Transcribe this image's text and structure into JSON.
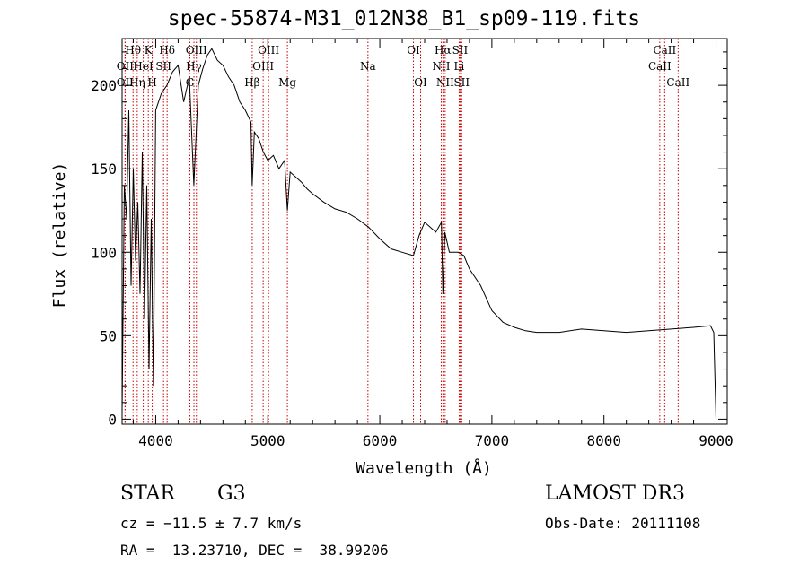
{
  "chart_data": {
    "type": "line",
    "title": "spec-55874-M31_012N38_B1_sp09-119.fits",
    "xlabel": "Wavelength (Å)",
    "ylabel": "Flux (relative)",
    "xlim": [
      3700,
      9100
    ],
    "ylim": [
      -3,
      228
    ],
    "xticks": [
      4000,
      5000,
      6000,
      7000,
      8000,
      9000
    ],
    "yticks": [
      0,
      50,
      100,
      150,
      200
    ],
    "series": [
      {
        "name": "flux",
        "x": [
          3700,
          3720,
          3740,
          3760,
          3780,
          3800,
          3820,
          3840,
          3860,
          3880,
          3900,
          3920,
          3940,
          3960,
          3980,
          4000,
          4050,
          4100,
          4150,
          4200,
          4250,
          4300,
          4340,
          4380,
          4420,
          4460,
          4500,
          4550,
          4600,
          4650,
          4700,
          4750,
          4800,
          4850,
          4861,
          4880,
          4920,
          4960,
          5000,
          5050,
          5100,
          5150,
          5175,
          5200,
          5250,
          5300,
          5350,
          5400,
          5500,
          5600,
          5700,
          5800,
          5900,
          6000,
          6100,
          6200,
          6300,
          6350,
          6400,
          6500,
          6550,
          6563,
          6580,
          6620,
          6700,
          6750,
          6800,
          6900,
          7000,
          7100,
          7200,
          7300,
          7400,
          7600,
          7800,
          8000,
          8200,
          8400,
          8600,
          8800,
          8950,
          8980,
          9000
        ],
        "values": [
          3,
          140,
          120,
          185,
          80,
          150,
          95,
          130,
          75,
          160,
          60,
          140,
          30,
          120,
          20,
          185,
          195,
          200,
          208,
          212,
          190,
          205,
          140,
          200,
          210,
          218,
          222,
          215,
          212,
          205,
          200,
          190,
          185,
          178,
          140,
          172,
          168,
          160,
          155,
          158,
          150,
          155,
          125,
          148,
          145,
          142,
          138,
          135,
          130,
          126,
          124,
          120,
          115,
          108,
          102,
          100,
          98,
          110,
          118,
          112,
          118,
          75,
          112,
          100,
          100,
          98,
          90,
          80,
          65,
          58,
          55,
          53,
          52,
          52,
          54,
          53,
          52,
          53,
          54,
          55,
          56,
          52,
          0
        ]
      }
    ],
    "lines": [
      {
        "label": "OII",
        "x": 3727,
        "row": 2
      },
      {
        "label": "Hθ",
        "x": 3798,
        "row": 1
      },
      {
        "label": "OII",
        "x": 3727,
        "row": 3
      },
      {
        "label": "Hη",
        "x": 3835,
        "row": 3
      },
      {
        "label": "HeI",
        "x": 3889,
        "row": 2
      },
      {
        "label": "K",
        "x": 3934,
        "row": 1
      },
      {
        "label": "H",
        "x": 3969,
        "row": 3
      },
      {
        "label": "Hδ",
        "x": 4102,
        "row": 1
      },
      {
        "label": "SII",
        "x": 4070,
        "row": 2
      },
      {
        "label": "OIII",
        "x": 4363,
        "row": 1
      },
      {
        "label": "Hγ",
        "x": 4341,
        "row": 2
      },
      {
        "label": "G",
        "x": 4305,
        "row": 3
      },
      {
        "label": "Hβ",
        "x": 4861,
        "row": 3
      },
      {
        "label": "OIII",
        "x": 4959,
        "row": 2
      },
      {
        "label": "OIII",
        "x": 5007,
        "row": 1
      },
      {
        "label": "Mg",
        "x": 5175,
        "row": 3
      },
      {
        "label": "Na",
        "x": 5894,
        "row": 2
      },
      {
        "label": "OI",
        "x": 6300,
        "row": 1
      },
      {
        "label": "OI",
        "x": 6364,
        "row": 3
      },
      {
        "label": "Hα",
        "x": 6563,
        "row": 1
      },
      {
        "label": "NII",
        "x": 6548,
        "row": 2
      },
      {
        "label": "NII",
        "x": 6583,
        "row": 3
      },
      {
        "label": "SII",
        "x": 6716,
        "row": 1
      },
      {
        "label": "Li",
        "x": 6708,
        "row": 2
      },
      {
        "label": "SII",
        "x": 6731,
        "row": 3
      },
      {
        "label": "CaII",
        "x": 8542,
        "row": 1
      },
      {
        "label": "CaII",
        "x": 8498,
        "row": 2
      },
      {
        "label": "CaII",
        "x": 8662,
        "row": 3
      }
    ],
    "line_color": "#cc0000"
  },
  "info": {
    "class": "STAR",
    "subclass": "G3",
    "survey": "LAMOST DR3",
    "cz": "cz = −11.5 ± 7.7 km/s",
    "obs_date": "Obs-Date: 20111108",
    "radec": "RA =  13.23710, DEC =  38.99206"
  }
}
